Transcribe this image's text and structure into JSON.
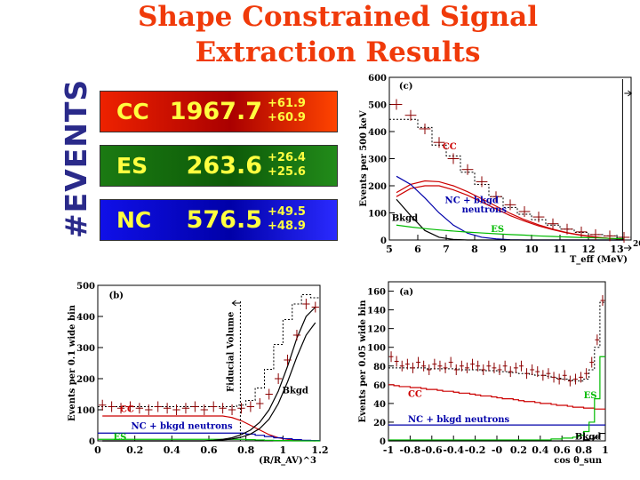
{
  "title_line1": "Shape Constrained Signal",
  "title_line2": "Extraction Results",
  "events_label": "#EVENTS",
  "boxes": [
    {
      "label": "CC",
      "value": "1967.7",
      "plus": "+61.9",
      "minus": "+60.9",
      "color": "#cc0000"
    },
    {
      "label": "ES",
      "value": "263.6",
      "plus": "+26.4",
      "minus": "+25.6",
      "color": "#1b6e14"
    },
    {
      "label": "NC",
      "value": "576.5",
      "plus": "+49.5",
      "minus": "+48.9",
      "color": "#0000cc"
    }
  ],
  "chart_data": [
    {
      "panel": "(c)",
      "type": "line",
      "ylabel": "Events per 500 keV",
      "xlabel": "T_eff (MeV)",
      "xlim": [
        5,
        13.5
      ],
      "ylim": [
        0,
        600
      ],
      "xticks": [
        "5",
        "6",
        "7",
        "8",
        "9",
        "10",
        "11",
        "12",
        "13"
      ],
      "yticks": [
        "0",
        "100",
        "200",
        "300",
        "400",
        "500",
        "600"
      ],
      "overflow_label": "20",
      "x": [
        5.25,
        5.75,
        6.25,
        6.75,
        7.25,
        7.75,
        8.25,
        8.75,
        9.25,
        9.75,
        10.25,
        10.75,
        11.25,
        11.75,
        12.25,
        12.75,
        13.25
      ],
      "data": [
        500,
        460,
        410,
        360,
        300,
        260,
        215,
        160,
        130,
        105,
        85,
        60,
        40,
        30,
        20,
        15,
        10
      ],
      "fit_total": [
        445,
        445,
        415,
        350,
        310,
        250,
        205,
        160,
        120,
        95,
        75,
        55,
        40,
        28,
        20,
        15,
        10
      ],
      "series": [
        {
          "name": "CC",
          "values": [
            160,
            190,
            200,
            200,
            185,
            165,
            140,
            115,
            90,
            70,
            52,
            38,
            26,
            17,
            10,
            6,
            3
          ],
          "color": "#cc0000"
        },
        {
          "name": "CC",
          "values": [
            175,
            205,
            218,
            215,
            200,
            178,
            152,
            125,
            98,
            75,
            56,
            40,
            27,
            18,
            11,
            6,
            3
          ],
          "color": "#cc0000"
        },
        {
          "name": "NC + bkgd neutrons",
          "values": [
            235,
            205,
            155,
            100,
            55,
            25,
            10,
            4,
            1,
            0,
            0,
            0,
            0,
            0,
            0,
            0,
            0
          ],
          "color": "#0000aa"
        },
        {
          "name": "Bkgd",
          "values": [
            150,
            90,
            35,
            10,
            2,
            0,
            0,
            0,
            0,
            0,
            0,
            0,
            0,
            0,
            0,
            0,
            0
          ],
          "color": "#000000"
        },
        {
          "name": "ES",
          "values": [
            55,
            48,
            42,
            37,
            33,
            29,
            26,
            23,
            20,
            18,
            15,
            13,
            11,
            9,
            8,
            6,
            5
          ],
          "color": "#00bb00"
        }
      ],
      "annotations": [
        "(c)",
        "CC",
        "NC + bkgd",
        "neutrons",
        "Bkgd",
        "ES"
      ]
    },
    {
      "panel": "(b)",
      "type": "line",
      "ylabel": "Events per 0.1 wide bin",
      "xlabel": "(R/R_AV)^3",
      "xlim": [
        0,
        1.2
      ],
      "ylim": [
        0,
        500
      ],
      "xticks": [
        "0",
        "0.2",
        "0.4",
        "0.6",
        "0.8",
        "1",
        "1.2"
      ],
      "yticks": [
        "0",
        "100",
        "200",
        "300",
        "400",
        "500"
      ],
      "x": [
        0.025,
        0.075,
        0.125,
        0.175,
        0.225,
        0.275,
        0.325,
        0.375,
        0.425,
        0.475,
        0.525,
        0.575,
        0.625,
        0.675,
        0.725,
        0.775,
        0.825,
        0.875,
        0.925,
        0.975,
        1.025,
        1.075,
        1.125,
        1.175
      ],
      "data": [
        115,
        110,
        105,
        110,
        105,
        100,
        110,
        105,
        100,
        105,
        110,
        100,
        110,
        105,
        100,
        105,
        110,
        120,
        150,
        200,
        260,
        340,
        440,
        430
      ],
      "fit_total": [
        110,
        110,
        110,
        110,
        110,
        110,
        110,
        110,
        110,
        110,
        110,
        110,
        110,
        110,
        110,
        115,
        130,
        170,
        230,
        310,
        390,
        440,
        470,
        460
      ],
      "series": [
        {
          "name": "CC",
          "values": [
            80,
            80,
            80,
            80,
            80,
            80,
            80,
            80,
            80,
            80,
            80,
            80,
            80,
            80,
            75,
            65,
            50,
            35,
            20,
            10,
            5,
            2,
            1,
            0
          ],
          "color": "#cc0000"
        },
        {
          "name": "NC + bkgd neutrons",
          "values": [
            25,
            25,
            25,
            25,
            25,
            25,
            25,
            25,
            25,
            25,
            25,
            25,
            25,
            25,
            25,
            25,
            22,
            18,
            14,
            10,
            7,
            4,
            2,
            1
          ],
          "color": "#0000aa"
        },
        {
          "name": "ES",
          "values": [
            5,
            5,
            5,
            5,
            5,
            5,
            5,
            5,
            5,
            5,
            5,
            5,
            5,
            5,
            5,
            5,
            4,
            3,
            2,
            1,
            1,
            0,
            0,
            0
          ],
          "color": "#00bb00"
        },
        {
          "name": "Bkgd",
          "values": [
            0,
            0,
            0,
            0,
            0,
            0,
            0,
            0,
            0,
            0,
            0,
            0,
            2,
            5,
            10,
            20,
            35,
            60,
            100,
            160,
            240,
            330,
            400,
            430
          ],
          "color": "#000000"
        },
        {
          "name": "Bkgd",
          "values": [
            0,
            0,
            0,
            0,
            0,
            0,
            0,
            0,
            0,
            0,
            0,
            0,
            1,
            3,
            6,
            12,
            22,
            40,
            70,
            120,
            190,
            270,
            340,
            380
          ],
          "color": "#000000"
        }
      ],
      "cut_x": 0.77,
      "annotations": [
        "(b)",
        "Fiducial Volume",
        "Bkgd",
        "CC",
        "NC + bkgd neutrons",
        "ES"
      ]
    },
    {
      "panel": "(a)",
      "type": "line",
      "ylabel": "Events per 0.05 wide bin",
      "xlabel": "cos θ_sun",
      "xlim": [
        -1,
        1
      ],
      "ylim": [
        0,
        170
      ],
      "xticks": [
        "-1",
        "-0.8",
        "-0.6",
        "-0.4",
        "-0.2",
        "-0",
        "0.2",
        "0.4",
        "0.6",
        "0.8",
        "1"
      ],
      "yticks": [
        "0",
        "20",
        "40",
        "60",
        "80",
        "100",
        "120",
        "140",
        "160"
      ],
      "x": [
        -0.975,
        -0.925,
        -0.875,
        -0.825,
        -0.775,
        -0.725,
        -0.675,
        -0.625,
        -0.575,
        -0.525,
        -0.475,
        -0.425,
        -0.375,
        -0.325,
        -0.275,
        -0.225,
        -0.175,
        -0.125,
        -0.075,
        -0.025,
        0.025,
        0.075,
        0.125,
        0.175,
        0.225,
        0.275,
        0.325,
        0.375,
        0.425,
        0.475,
        0.525,
        0.575,
        0.625,
        0.675,
        0.725,
        0.775,
        0.825,
        0.875,
        0.925,
        0.975
      ],
      "data": [
        90,
        85,
        80,
        82,
        78,
        84,
        80,
        76,
        82,
        80,
        78,
        84,
        76,
        80,
        78,
        82,
        80,
        76,
        80,
        78,
        76,
        80,
        74,
        78,
        80,
        72,
        76,
        74,
        70,
        72,
        68,
        66,
        70,
        64,
        66,
        68,
        72,
        84,
        108,
        150
      ],
      "fit_total": [
        78,
        78,
        78,
        78,
        78,
        78,
        78,
        77,
        77,
        77,
        77,
        77,
        77,
        76,
        76,
        76,
        76,
        75,
        75,
        75,
        74,
        74,
        73,
        73,
        72,
        72,
        71,
        70,
        70,
        69,
        68,
        67,
        66,
        65,
        64,
        64,
        66,
        76,
        100,
        148
      ],
      "series": [
        {
          "name": "CC",
          "values": [
            60,
            59,
            58,
            58,
            57,
            57,
            56,
            55,
            55,
            54,
            53,
            53,
            52,
            51,
            51,
            50,
            49,
            48,
            48,
            47,
            46,
            45,
            45,
            44,
            43,
            42,
            42,
            41,
            40,
            40,
            39,
            38,
            38,
            37,
            36,
            36,
            35,
            35,
            34,
            34
          ],
          "color": "#cc0000"
        },
        {
          "name": "NC + bkgd neutrons",
          "values": [
            17,
            17,
            17,
            17,
            17,
            17,
            17,
            17,
            17,
            17,
            17,
            17,
            17,
            17,
            17,
            17,
            17,
            17,
            17,
            17,
            17,
            17,
            17,
            17,
            17,
            17,
            17,
            17,
            17,
            17,
            17,
            17,
            17,
            17,
            17,
            17,
            17,
            17,
            17,
            17
          ],
          "color": "#0000aa"
        },
        {
          "name": "ES",
          "values": [
            1,
            1,
            1,
            1,
            1,
            1,
            1,
            1,
            1,
            1,
            1,
            1,
            1,
            1,
            1,
            1,
            1,
            1,
            1,
            1,
            1,
            1,
            1,
            1,
            1,
            1,
            1,
            1,
            1,
            1,
            2,
            2,
            3,
            3,
            4,
            6,
            10,
            20,
            45,
            90
          ],
          "color": "#00bb00"
        },
        {
          "name": "Bkgd",
          "values": [
            0,
            0,
            0,
            0,
            0,
            0,
            0,
            0,
            0,
            0,
            0,
            0,
            0,
            0,
            0,
            0,
            0,
            0,
            0,
            0,
            0,
            0,
            0,
            0,
            0,
            0,
            0,
            0,
            0,
            0,
            0,
            0,
            0,
            0,
            0,
            0,
            1,
            2,
            4,
            8
          ],
          "color": "#000000"
        }
      ],
      "annotations": [
        "(a)",
        "CC",
        "NC + bkgd neutrons",
        "ES",
        "Bkgd"
      ]
    }
  ]
}
